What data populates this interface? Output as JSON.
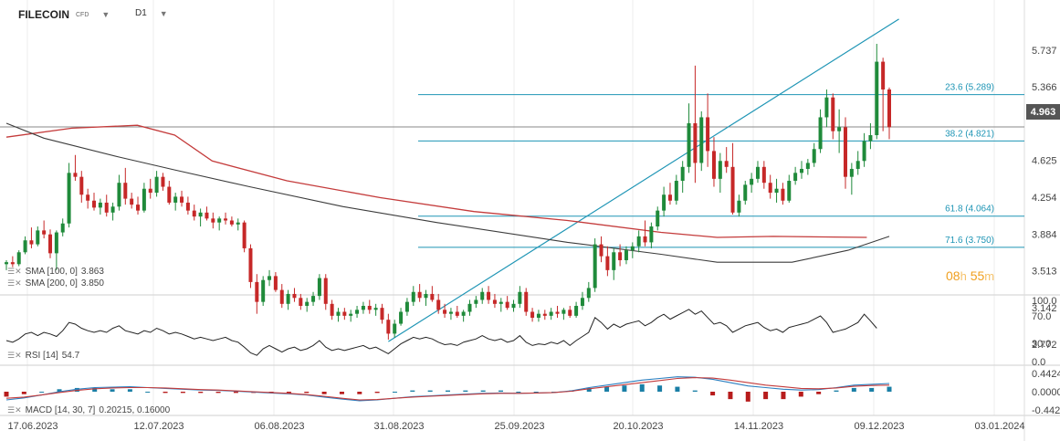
{
  "header": {
    "symbol": "FILECOIN",
    "symbol_type": "CFD",
    "timeframe": "D1"
  },
  "indicators": {
    "sma100": {
      "label": "SMA [100, 0]",
      "value": "3.863"
    },
    "sma200": {
      "label": "SMA [200, 0]",
      "value": "3.850"
    },
    "rsi": {
      "label": "RSI [14]",
      "value": "54.7"
    },
    "macd": {
      "label": "MACD [14, 30, 7]",
      "value": "0.20215, 0.16000"
    }
  },
  "timer": {
    "hours": "08",
    "h_unit": "h",
    "minutes": "55",
    "m_unit": "m"
  },
  "current_price": "4.963",
  "colors": {
    "sma100": "#c43b3b",
    "sma200": "#3c3c3c",
    "fib": "#1e95b5",
    "up": "#1f8a3a",
    "down": "#c62828",
    "macd_line": "#2a7fc0",
    "signal_line": "#c43b3b"
  },
  "chart_data": {
    "type": "candlestick",
    "price_axis_ticks": [
      "5.737",
      "5.366",
      "4.963",
      "4.625",
      "4.254",
      "3.884",
      "3.513",
      "3.142",
      "2.772"
    ],
    "x_tick_labels": [
      "17.06.2023",
      "12.07.2023",
      "06.08.2023",
      "31.08.2023",
      "25.09.2023",
      "20.10.2023",
      "14.11.2023",
      "09.12.2023",
      "03.01.2024"
    ],
    "fibonacci": [
      {
        "label": "23.6 (5.289)",
        "value": 5.289
      },
      {
        "label": "38.2 (4.821)",
        "value": 4.821
      },
      {
        "label": "61.8 (4.064)",
        "value": 4.064
      },
      {
        "label": "71.6 (3.750)",
        "value": 3.75
      }
    ],
    "fib_anchor": {
      "low": 2.8,
      "high": 6.05
    },
    "candles": [
      [
        3.58,
        3.62,
        3.52,
        3.6
      ],
      [
        3.6,
        3.66,
        3.55,
        3.58
      ],
      [
        3.58,
        3.72,
        3.56,
        3.7
      ],
      [
        3.7,
        3.86,
        3.68,
        3.82
      ],
      [
        3.82,
        3.95,
        3.74,
        3.78
      ],
      [
        3.78,
        3.96,
        3.76,
        3.92
      ],
      [
        3.92,
        4.02,
        3.84,
        3.88
      ],
      [
        3.88,
        3.93,
        3.64,
        3.69
      ],
      [
        3.69,
        3.92,
        3.52,
        3.9
      ],
      [
        3.9,
        4.04,
        3.86,
        3.99
      ],
      [
        3.99,
        4.6,
        3.95,
        4.5
      ],
      [
        4.5,
        4.68,
        4.42,
        4.46
      ],
      [
        4.46,
        4.52,
        4.2,
        4.28
      ],
      [
        4.28,
        4.34,
        4.14,
        4.22
      ],
      [
        4.22,
        4.3,
        4.12,
        4.15
      ],
      [
        4.15,
        4.24,
        4.08,
        4.2
      ],
      [
        4.2,
        4.28,
        4.06,
        4.1
      ],
      [
        4.1,
        4.2,
        4.02,
        4.16
      ],
      [
        4.16,
        4.48,
        4.12,
        4.4
      ],
      [
        4.4,
        4.55,
        4.18,
        4.24
      ],
      [
        4.24,
        4.3,
        4.14,
        4.18
      ],
      [
        4.18,
        4.26,
        4.08,
        4.12
      ],
      [
        4.12,
        4.4,
        4.1,
        4.34
      ],
      [
        4.34,
        4.44,
        4.24,
        4.3
      ],
      [
        4.3,
        4.52,
        4.26,
        4.46
      ],
      [
        4.46,
        4.5,
        4.32,
        4.36
      ],
      [
        4.36,
        4.42,
        4.18,
        4.2
      ],
      [
        4.2,
        4.3,
        4.12,
        4.26
      ],
      [
        4.26,
        4.32,
        4.16,
        4.2
      ],
      [
        4.2,
        4.26,
        4.08,
        4.12
      ],
      [
        4.12,
        4.18,
        4.02,
        4.06
      ],
      [
        4.06,
        4.14,
        3.96,
        4.1
      ],
      [
        4.1,
        4.16,
        4.02,
        4.04
      ],
      [
        4.04,
        4.1,
        3.94,
        4.0
      ],
      [
        4.0,
        4.06,
        3.92,
        4.04
      ],
      [
        4.04,
        4.1,
        3.98,
        4.02
      ],
      [
        4.02,
        4.06,
        3.96,
        3.98
      ],
      [
        3.98,
        4.04,
        3.92,
        4.0
      ],
      [
        4.0,
        4.02,
        3.7,
        3.74
      ],
      [
        3.74,
        3.78,
        3.34,
        3.4
      ],
      [
        3.4,
        3.48,
        3.08,
        3.2
      ],
      [
        3.2,
        3.46,
        3.16,
        3.42
      ],
      [
        3.42,
        3.52,
        3.36,
        3.46
      ],
      [
        3.46,
        3.5,
        3.3,
        3.32
      ],
      [
        3.32,
        3.38,
        3.14,
        3.18
      ],
      [
        3.18,
        3.32,
        3.12,
        3.28
      ],
      [
        3.28,
        3.34,
        3.2,
        3.24
      ],
      [
        3.24,
        3.28,
        3.12,
        3.16
      ],
      [
        3.16,
        3.24,
        3.1,
        3.2
      ],
      [
        3.2,
        3.3,
        3.16,
        3.26
      ],
      [
        3.26,
        3.48,
        3.22,
        3.44
      ],
      [
        3.44,
        3.48,
        3.12,
        3.18
      ],
      [
        3.18,
        3.22,
        3.02,
        3.06
      ],
      [
        3.06,
        3.14,
        3.0,
        3.1
      ],
      [
        3.1,
        3.14,
        3.02,
        3.06
      ],
      [
        3.06,
        3.12,
        3.0,
        3.08
      ],
      [
        3.08,
        3.16,
        3.04,
        3.12
      ],
      [
        3.12,
        3.2,
        3.08,
        3.16
      ],
      [
        3.16,
        3.22,
        3.08,
        3.12
      ],
      [
        3.12,
        3.18,
        3.06,
        3.14
      ],
      [
        3.14,
        3.18,
        2.98,
        3.02
      ],
      [
        3.02,
        3.08,
        2.82,
        2.88
      ],
      [
        2.88,
        3.02,
        2.84,
        2.98
      ],
      [
        2.98,
        3.14,
        2.96,
        3.1
      ],
      [
        3.1,
        3.24,
        3.06,
        3.2
      ],
      [
        3.2,
        3.36,
        3.16,
        3.3
      ],
      [
        3.3,
        3.38,
        3.2,
        3.24
      ],
      [
        3.24,
        3.32,
        3.16,
        3.28
      ],
      [
        3.28,
        3.36,
        3.2,
        3.22
      ],
      [
        3.22,
        3.28,
        3.08,
        3.12
      ],
      [
        3.12,
        3.18,
        3.04,
        3.08
      ],
      [
        3.08,
        3.14,
        3.02,
        3.1
      ],
      [
        3.1,
        3.16,
        3.04,
        3.06
      ],
      [
        3.06,
        3.12,
        3.0,
        3.1
      ],
      [
        3.1,
        3.22,
        3.06,
        3.18
      ],
      [
        3.18,
        3.26,
        3.14,
        3.22
      ],
      [
        3.22,
        3.34,
        3.18,
        3.3
      ],
      [
        3.3,
        3.36,
        3.18,
        3.22
      ],
      [
        3.22,
        3.28,
        3.14,
        3.18
      ],
      [
        3.18,
        3.24,
        3.1,
        3.2
      ],
      [
        3.2,
        3.26,
        3.12,
        3.14
      ],
      [
        3.14,
        3.22,
        3.1,
        3.18
      ],
      [
        3.18,
        3.36,
        3.14,
        3.3
      ],
      [
        3.3,
        3.34,
        3.06,
        3.1
      ],
      [
        3.1,
        3.14,
        3.0,
        3.04
      ],
      [
        3.04,
        3.12,
        3.0,
        3.08
      ],
      [
        3.08,
        3.12,
        3.02,
        3.06
      ],
      [
        3.06,
        3.14,
        3.02,
        3.1
      ],
      [
        3.1,
        3.16,
        3.04,
        3.08
      ],
      [
        3.08,
        3.14,
        3.02,
        3.12
      ],
      [
        3.12,
        3.16,
        3.04,
        3.06
      ],
      [
        3.06,
        3.2,
        3.04,
        3.16
      ],
      [
        3.16,
        3.3,
        3.12,
        3.24
      ],
      [
        3.24,
        3.4,
        3.2,
        3.34
      ],
      [
        3.34,
        3.84,
        3.3,
        3.78
      ],
      [
        3.78,
        3.86,
        3.6,
        3.66
      ],
      [
        3.66,
        3.76,
        3.46,
        3.52
      ],
      [
        3.52,
        3.74,
        3.42,
        3.7
      ],
      [
        3.7,
        3.78,
        3.56,
        3.62
      ],
      [
        3.62,
        3.76,
        3.58,
        3.72
      ],
      [
        3.72,
        3.8,
        3.64,
        3.76
      ],
      [
        3.76,
        3.92,
        3.7,
        3.86
      ],
      [
        3.86,
        4.02,
        3.76,
        3.8
      ],
      [
        3.8,
        4.0,
        3.74,
        3.96
      ],
      [
        3.96,
        4.16,
        3.92,
        4.12
      ],
      [
        4.12,
        4.36,
        4.06,
        4.28
      ],
      [
        4.28,
        4.4,
        4.18,
        4.22
      ],
      [
        4.22,
        4.48,
        4.18,
        4.42
      ],
      [
        4.42,
        4.62,
        4.3,
        4.56
      ],
      [
        4.56,
        5.2,
        4.5,
        5.0
      ],
      [
        5.0,
        5.58,
        4.4,
        4.6
      ],
      [
        4.6,
        5.12,
        4.52,
        5.06
      ],
      [
        5.06,
        5.3,
        4.56,
        4.72
      ],
      [
        4.72,
        4.86,
        4.36,
        4.44
      ],
      [
        4.44,
        4.7,
        4.3,
        4.62
      ],
      [
        4.62,
        4.76,
        4.5,
        4.56
      ],
      [
        4.56,
        4.8,
        4.08,
        4.1
      ],
      [
        4.1,
        4.28,
        4.06,
        4.22
      ],
      [
        4.22,
        4.42,
        4.18,
        4.38
      ],
      [
        4.38,
        4.5,
        4.3,
        4.44
      ],
      [
        4.44,
        4.62,
        4.4,
        4.56
      ],
      [
        4.56,
        4.62,
        4.34,
        4.4
      ],
      [
        4.4,
        4.48,
        4.24,
        4.3
      ],
      [
        4.3,
        4.44,
        4.2,
        4.34
      ],
      [
        4.34,
        4.4,
        4.18,
        4.22
      ],
      [
        4.22,
        4.48,
        4.2,
        4.42
      ],
      [
        4.42,
        4.56,
        4.38,
        4.5
      ],
      [
        4.5,
        4.62,
        4.44,
        4.54
      ],
      [
        4.54,
        4.64,
        4.48,
        4.6
      ],
      [
        4.6,
        4.8,
        4.56,
        4.74
      ],
      [
        4.74,
        5.14,
        4.7,
        5.06
      ],
      [
        5.06,
        5.34,
        4.96,
        5.26
      ],
      [
        5.26,
        5.3,
        4.84,
        4.92
      ],
      [
        4.92,
        5.14,
        4.7,
        4.96
      ],
      [
        4.96,
        5.06,
        4.34,
        4.46
      ],
      [
        4.46,
        4.6,
        4.28,
        4.54
      ],
      [
        4.54,
        4.72,
        4.48,
        4.62
      ],
      [
        4.62,
        4.9,
        4.56,
        4.82
      ],
      [
        4.82,
        5.0,
        4.74,
        4.88
      ],
      [
        4.88,
        5.8,
        4.84,
        5.62
      ],
      [
        5.62,
        5.66,
        4.92,
        5.34
      ],
      [
        5.34,
        5.36,
        4.84,
        4.96
      ]
    ],
    "sma100": [
      [
        0,
        4.86
      ],
      [
        35,
        4.95
      ],
      [
        70,
        4.98
      ],
      [
        90,
        4.88
      ],
      [
        110,
        4.62
      ],
      [
        150,
        4.42
      ],
      [
        200,
        4.25
      ],
      [
        250,
        4.11
      ],
      [
        300,
        4.02
      ],
      [
        350,
        3.9
      ],
      [
        380,
        3.85
      ],
      [
        410,
        3.86
      ],
      [
        460,
        3.85
      ]
    ],
    "sma200": [
      [
        0,
        5.0
      ],
      [
        20,
        4.85
      ],
      [
        60,
        4.66
      ],
      [
        90,
        4.53
      ],
      [
        130,
        4.36
      ],
      [
        180,
        4.16
      ],
      [
        230,
        4.0
      ],
      [
        300,
        3.8
      ],
      [
        350,
        3.68
      ],
      [
        380,
        3.6
      ],
      [
        420,
        3.6
      ],
      [
        450,
        3.72
      ],
      [
        472,
        3.86
      ]
    ],
    "rsi": {
      "ticks": [
        "100.0",
        "70.0",
        "30.0",
        "0.0"
      ],
      "values": [
        40,
        38,
        42,
        48,
        50,
        46,
        50,
        48,
        45,
        52,
        62,
        60,
        55,
        52,
        50,
        52,
        50,
        55,
        58,
        52,
        50,
        48,
        52,
        50,
        55,
        52,
        48,
        50,
        48,
        45,
        42,
        44,
        42,
        40,
        42,
        44,
        40,
        38,
        32,
        25,
        22,
        30,
        34,
        30,
        26,
        30,
        32,
        28,
        30,
        34,
        40,
        32,
        28,
        30,
        28,
        30,
        32,
        34,
        30,
        32,
        28,
        24,
        30,
        36,
        40,
        44,
        42,
        44,
        42,
        38,
        35,
        36,
        34,
        38,
        40,
        42,
        46,
        42,
        40,
        42,
        38,
        40,
        46,
        38,
        34,
        36,
        35,
        38,
        36,
        40,
        34,
        40,
        45,
        50,
        68,
        62,
        54,
        60,
        56,
        60,
        62,
        64,
        58,
        62,
        68,
        72,
        66,
        70,
        74,
        78,
        72,
        76,
        68,
        60,
        62,
        58,
        50,
        54,
        58,
        60,
        62,
        56,
        52,
        54,
        50,
        56,
        58,
        60,
        62,
        66,
        70,
        62,
        50,
        52,
        54,
        58,
        62,
        72,
        64,
        55
      ],
      "last": 54.7
    },
    "macd": {
      "ticks": [
        "0.44245",
        "0.00000",
        "-0.44245"
      ],
      "macd_line": [
        -0.2,
        -0.15,
        -0.08,
        0.0,
        0.06,
        0.1,
        0.11,
        0.12,
        0.1,
        0.08,
        0.06,
        0.04,
        0.03,
        0.01,
        -0.01,
        -0.03,
        -0.05,
        -0.08,
        -0.13,
        -0.18,
        -0.22,
        -0.2,
        -0.16,
        -0.12,
        -0.1,
        -0.08,
        -0.06,
        -0.04,
        -0.03,
        -0.04,
        -0.03,
        -0.02,
        0.02,
        0.1,
        0.16,
        0.22,
        0.28,
        0.32,
        0.36,
        0.35,
        0.3,
        0.22,
        0.14,
        0.1,
        0.06,
        0.04,
        0.05,
        0.1,
        0.16,
        0.18,
        0.2
      ],
      "signal_line": [
        -0.16,
        -0.13,
        -0.08,
        -0.02,
        0.03,
        0.07,
        0.09,
        0.1,
        0.1,
        0.09,
        0.07,
        0.05,
        0.04,
        0.02,
        0.0,
        -0.02,
        -0.04,
        -0.07,
        -0.11,
        -0.16,
        -0.2,
        -0.19,
        -0.16,
        -0.13,
        -0.11,
        -0.09,
        -0.07,
        -0.05,
        -0.04,
        -0.04,
        -0.03,
        -0.02,
        0.01,
        0.07,
        0.12,
        0.17,
        0.22,
        0.27,
        0.32,
        0.34,
        0.33,
        0.28,
        0.22,
        0.16,
        0.12,
        0.08,
        0.07,
        0.09,
        0.13,
        0.15,
        0.16
      ]
    }
  }
}
